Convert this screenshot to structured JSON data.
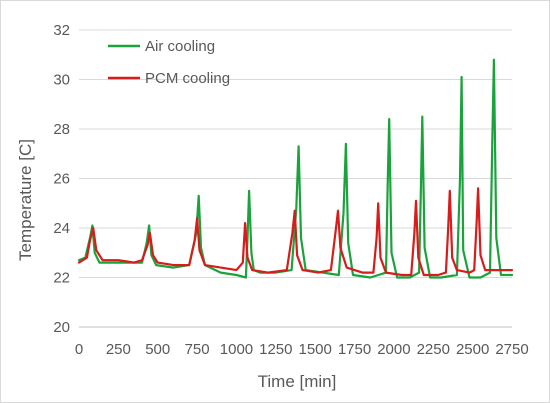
{
  "chart_data": {
    "type": "line",
    "xlabel": "Time [min]",
    "ylabel": "Temperature [C]",
    "xlim": [
      0,
      2750
    ],
    "ylim": [
      20,
      32
    ],
    "x_ticks": [
      "0",
      "250",
      "500",
      "750",
      "1000",
      "1250",
      "1500",
      "1750",
      "2000",
      "2250",
      "2500",
      "2750"
    ],
    "y_ticks": [
      "20",
      "22",
      "24",
      "26",
      "28",
      "30",
      "32"
    ],
    "grid": "horizontal",
    "legend": "top-left",
    "series": [
      {
        "name": "Air cooling",
        "color": "#1aa33b",
        "x": [
          0,
          40,
          70,
          85,
          100,
          130,
          200,
          300,
          400,
          430,
          445,
          460,
          490,
          600,
          700,
          745,
          760,
          775,
          800,
          900,
          1000,
          1060,
          1070,
          1080,
          1095,
          1110,
          1150,
          1250,
          1350,
          1380,
          1395,
          1410,
          1440,
          1550,
          1650,
          1680,
          1695,
          1710,
          1740,
          1850,
          1950,
          1960,
          1970,
          1985,
          2020,
          2100,
          2160,
          2172,
          2180,
          2195,
          2230,
          2300,
          2400,
          2420,
          2430,
          2440,
          2480,
          2550,
          2610,
          2625,
          2635,
          2650,
          2680,
          2750
        ],
        "y": [
          22.7,
          22.8,
          23.6,
          24.1,
          23.0,
          22.6,
          22.6,
          22.6,
          22.6,
          23.4,
          24.1,
          22.9,
          22.5,
          22.4,
          22.5,
          23.8,
          25.3,
          23.2,
          22.5,
          22.2,
          22.1,
          22.0,
          23.6,
          25.5,
          23.0,
          22.3,
          22.2,
          22.2,
          22.3,
          24.8,
          27.3,
          23.6,
          22.3,
          22.2,
          22.1,
          24.6,
          27.4,
          23.4,
          22.1,
          22.0,
          22.2,
          25.6,
          28.4,
          23.0,
          22.0,
          22.0,
          22.2,
          25.8,
          28.5,
          23.2,
          22.0,
          22.0,
          22.1,
          26.0,
          30.1,
          23.1,
          22.0,
          22.0,
          22.2,
          27.5,
          30.8,
          23.6,
          22.1,
          22.1
        ]
      },
      {
        "name": "PCM cooling",
        "color": "#d81b1b",
        "x": [
          0,
          50,
          70,
          90,
          110,
          150,
          250,
          350,
          400,
          435,
          450,
          470,
          500,
          600,
          700,
          735,
          750,
          765,
          800,
          900,
          1000,
          1040,
          1055,
          1070,
          1100,
          1200,
          1320,
          1355,
          1370,
          1385,
          1420,
          1520,
          1600,
          1630,
          1645,
          1660,
          1700,
          1800,
          1870,
          1890,
          1900,
          1915,
          1950,
          2050,
          2110,
          2130,
          2140,
          2155,
          2190,
          2280,
          2330,
          2345,
          2355,
          2370,
          2400,
          2480,
          2510,
          2525,
          2535,
          2550,
          2580,
          2680,
          2750
        ],
        "y": [
          22.6,
          22.8,
          23.5,
          24.0,
          23.1,
          22.7,
          22.7,
          22.6,
          22.7,
          23.3,
          23.8,
          22.9,
          22.6,
          22.5,
          22.5,
          23.5,
          24.4,
          23.1,
          22.5,
          22.4,
          22.3,
          22.6,
          24.2,
          22.8,
          22.3,
          22.2,
          22.3,
          23.8,
          24.7,
          22.9,
          22.3,
          22.2,
          22.3,
          23.9,
          24.7,
          23.2,
          22.4,
          22.2,
          22.2,
          23.6,
          25.0,
          22.8,
          22.2,
          22.1,
          22.1,
          23.8,
          25.1,
          22.8,
          22.1,
          22.1,
          22.2,
          24.0,
          25.5,
          22.8,
          22.3,
          22.2,
          22.3,
          24.2,
          25.6,
          22.9,
          22.3,
          22.3,
          22.3
        ]
      }
    ]
  }
}
